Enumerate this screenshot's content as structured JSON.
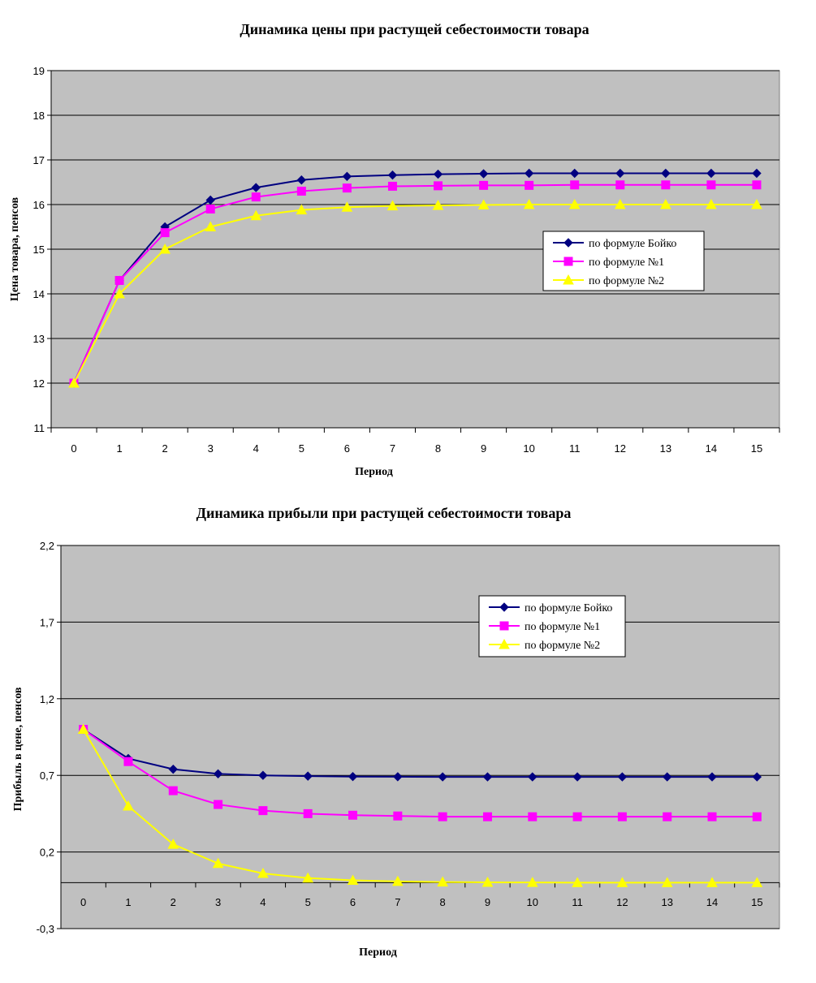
{
  "chart_data": [
    {
      "type": "line",
      "title": "Динамика цены при растущей себестоимости товара",
      "xlabel": "Период",
      "ylabel": "Цена товара, пенсов",
      "x": [
        0,
        1,
        2,
        3,
        4,
        5,
        6,
        7,
        8,
        9,
        10,
        11,
        12,
        13,
        14,
        15
      ],
      "x_tick_labels": [
        "0",
        "1",
        "2",
        "3",
        "4",
        "5",
        "6",
        "7",
        "8",
        "9",
        "10",
        "11",
        "12",
        "13",
        "14",
        "15"
      ],
      "ylim": [
        11,
        19
      ],
      "y_tick_labels": [
        "11",
        "12",
        "13",
        "14",
        "15",
        "16",
        "17",
        "18",
        "19"
      ],
      "grid": true,
      "legend_position": "right",
      "background": "#c0c0c0",
      "series": [
        {
          "name": "по формуле Бойко",
          "color": "#000080",
          "marker": "diamond",
          "values": [
            12,
            14.3,
            15.5,
            16.1,
            16.38,
            16.55,
            16.63,
            16.66,
            16.68,
            16.69,
            16.7,
            16.7,
            16.7,
            16.7,
            16.7,
            16.7
          ]
        },
        {
          "name": "по формуле №1",
          "color": "#ff00ff",
          "marker": "square",
          "values": [
            12,
            14.3,
            15.37,
            15.9,
            16.17,
            16.3,
            16.37,
            16.41,
            16.42,
            16.43,
            16.43,
            16.44,
            16.44,
            16.44,
            16.44,
            16.44
          ]
        },
        {
          "name": "по формуле №2",
          "color": "#ffff00",
          "marker": "triangle",
          "values": [
            12,
            14,
            15,
            15.5,
            15.75,
            15.88,
            15.94,
            15.97,
            15.98,
            15.99,
            16,
            16,
            16,
            16,
            16,
            16
          ]
        }
      ]
    },
    {
      "type": "line",
      "title": "Динамика прибыли при растущей себестоимости товара",
      "xlabel": "Период",
      "ylabel": "Прибыль в цене, пенсов",
      "x": [
        0,
        1,
        2,
        3,
        4,
        5,
        6,
        7,
        8,
        9,
        10,
        11,
        12,
        13,
        14,
        15
      ],
      "x_tick_labels": [
        "0",
        "1",
        "2",
        "3",
        "4",
        "5",
        "6",
        "7",
        "8",
        "9",
        "10",
        "11",
        "12",
        "13",
        "14",
        "15"
      ],
      "ylim": [
        -0.3,
        2.2
      ],
      "y_tick_labels": [
        "-0,3",
        "0,2",
        "0,7",
        "1,2",
        "1,7",
        "2,2"
      ],
      "grid": true,
      "legend_position": "top-right",
      "background": "#c0c0c0",
      "series": [
        {
          "name": "по формуле Бойко",
          "color": "#000080",
          "marker": "diamond",
          "values": [
            1,
            0.81,
            0.74,
            0.71,
            0.7,
            0.695,
            0.692,
            0.691,
            0.69,
            0.69,
            0.69,
            0.69,
            0.69,
            0.69,
            0.69,
            0.69
          ]
        },
        {
          "name": "по формуле №1",
          "color": "#ff00ff",
          "marker": "square",
          "values": [
            1,
            0.79,
            0.6,
            0.51,
            0.47,
            0.45,
            0.44,
            0.435,
            0.43,
            0.43,
            0.43,
            0.43,
            0.43,
            0.43,
            0.43,
            0.43
          ]
        },
        {
          "name": "по формуле №2",
          "color": "#ffff00",
          "marker": "triangle",
          "values": [
            1,
            0.5,
            0.25,
            0.125,
            0.06,
            0.03,
            0.015,
            0.008,
            0.004,
            0.002,
            0.001,
            0,
            0,
            0,
            0,
            0
          ]
        }
      ]
    }
  ]
}
